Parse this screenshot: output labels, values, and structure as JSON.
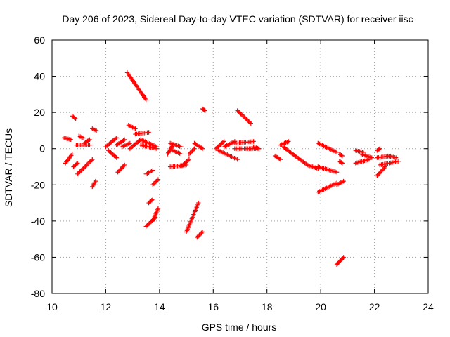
{
  "chart_data": {
    "type": "scatter",
    "title": "Day 206 of 2023, Sidereal Day-to-day VTEC variation (SDTVAR) for receiver iisc",
    "xlabel": "GPS time / hours",
    "ylabel": "SDTVAR / TECUs",
    "xlim": [
      10,
      24
    ],
    "ylim": [
      -80,
      60
    ],
    "xticks": [
      "10",
      "12",
      "14",
      "16",
      "18",
      "20",
      "22",
      "24"
    ],
    "yticks": [
      "-80",
      "-60",
      "-40",
      "-20",
      "0",
      "20",
      "40",
      "60"
    ],
    "grid": true,
    "marker": "+",
    "color": "#ff0000",
    "segments": [
      [
        [
          10.5,
          -8
        ],
        [
          10.75,
          -3
        ]
      ],
      [
        [
          10.45,
          6
        ],
        [
          10.7,
          5
        ]
      ],
      [
        [
          10.75,
          18
        ],
        [
          10.88,
          16.5
        ]
      ],
      [
        [
          10.8,
          -10
        ],
        [
          10.95,
          -8
        ]
      ],
      [
        [
          10.9,
          2
        ],
        [
          11.4,
          2
        ]
      ],
      [
        [
          11.0,
          7
        ],
        [
          11.15,
          6
        ]
      ],
      [
        [
          10.95,
          -14
        ],
        [
          11.5,
          -6
        ]
      ],
      [
        [
          11.2,
          3
        ],
        [
          11.4,
          5
        ]
      ],
      [
        [
          11.5,
          11
        ],
        [
          11.65,
          10
        ]
      ],
      [
        [
          11.5,
          -21
        ],
        [
          11.62,
          -18
        ]
      ],
      [
        [
          12.0,
          1
        ],
        [
          12.4,
          6
        ]
      ],
      [
        [
          12.1,
          -1
        ],
        [
          12.4,
          -5
        ]
      ],
      [
        [
          12.4,
          2
        ],
        [
          12.7,
          5
        ]
      ],
      [
        [
          12.45,
          -13
        ],
        [
          12.7,
          -9
        ]
      ],
      [
        [
          12.6,
          1
        ],
        [
          12.9,
          3
        ]
      ],
      [
        [
          12.8,
          42
        ],
        [
          13.5,
          27
        ]
      ],
      [
        [
          12.85,
          13
        ],
        [
          13.1,
          11
        ]
      ],
      [
        [
          12.9,
          0
        ],
        [
          13.3,
          5
        ]
      ],
      [
        [
          13.1,
          8
        ],
        [
          13.6,
          9
        ]
      ],
      [
        [
          13.3,
          2
        ],
        [
          13.9,
          0
        ]
      ],
      [
        [
          13.3,
          5
        ],
        [
          13.9,
          1
        ]
      ],
      [
        [
          13.5,
          -14
        ],
        [
          13.75,
          -12
        ]
      ],
      [
        [
          13.5,
          -43
        ],
        [
          13.85,
          -38
        ]
      ],
      [
        [
          13.6,
          -30
        ],
        [
          13.75,
          -28
        ]
      ],
      [
        [
          13.75,
          -40
        ],
        [
          13.95,
          -33
        ]
      ],
      [
        [
          13.75,
          -20
        ],
        [
          13.95,
          -17
        ]
      ],
      [
        [
          14.3,
          -3
        ],
        [
          14.5,
          2
        ]
      ],
      [
        [
          14.4,
          3
        ],
        [
          14.8,
          1
        ]
      ],
      [
        [
          14.4,
          -10
        ],
        [
          15.0,
          -9
        ]
      ],
      [
        [
          14.5,
          -1
        ],
        [
          14.8,
          -3
        ]
      ],
      [
        [
          14.8,
          -10
        ],
        [
          15.1,
          -6
        ]
      ],
      [
        [
          15.0,
          -46
        ],
        [
          15.45,
          -30
        ]
      ],
      [
        [
          15.1,
          -3
        ],
        [
          15.3,
          0
        ]
      ],
      [
        [
          15.3,
          3
        ],
        [
          15.6,
          0
        ]
      ],
      [
        [
          15.4,
          -49
        ],
        [
          15.6,
          -46
        ]
      ],
      [
        [
          15.6,
          22
        ],
        [
          15.7,
          21
        ]
      ],
      [
        [
          16.1,
          0
        ],
        [
          16.4,
          4
        ]
      ],
      [
        [
          16.2,
          -1
        ],
        [
          16.9,
          -6
        ]
      ],
      [
        [
          16.4,
          1
        ],
        [
          16.8,
          4
        ]
      ],
      [
        [
          16.8,
          3
        ],
        [
          17.5,
          4
        ]
      ],
      [
        [
          16.8,
          0
        ],
        [
          17.7,
          0
        ]
      ],
      [
        [
          16.9,
          21
        ],
        [
          17.4,
          14
        ]
      ],
      [
        [
          17.5,
          1
        ],
        [
          17.7,
          0
        ]
      ],
      [
        [
          18.3,
          -4
        ],
        [
          18.5,
          -6
        ]
      ],
      [
        [
          18.5,
          2
        ],
        [
          18.8,
          4
        ]
      ],
      [
        [
          18.6,
          1
        ],
        [
          19.5,
          -9
        ]
      ],
      [
        [
          19.5,
          -9
        ],
        [
          19.9,
          -11
        ]
      ],
      [
        [
          19.9,
          3
        ],
        [
          20.6,
          -2
        ]
      ],
      [
        [
          19.9,
          -10
        ],
        [
          20.6,
          -13
        ]
      ],
      [
        [
          19.9,
          -24
        ],
        [
          20.6,
          -19
        ]
      ],
      [
        [
          20.6,
          -64
        ],
        [
          20.85,
          -60
        ]
      ],
      [
        [
          20.6,
          -20
        ],
        [
          20.85,
          -18
        ]
      ],
      [
        [
          20.7,
          -3
        ],
        [
          20.8,
          -4
        ]
      ],
      [
        [
          20.7,
          -7
        ],
        [
          20.8,
          -8
        ]
      ],
      [
        [
          21.3,
          -1
        ],
        [
          21.6,
          -2
        ]
      ],
      [
        [
          21.3,
          -8
        ],
        [
          21.8,
          -6
        ]
      ],
      [
        [
          21.5,
          -3
        ],
        [
          21.9,
          -5
        ]
      ],
      [
        [
          22.1,
          -1
        ],
        [
          22.2,
          0
        ]
      ],
      [
        [
          22.1,
          -15
        ],
        [
          22.4,
          -10
        ]
      ],
      [
        [
          22.1,
          -5
        ],
        [
          22.6,
          -4
        ]
      ],
      [
        [
          22.2,
          -9
        ],
        [
          22.9,
          -7
        ]
      ],
      [
        [
          22.5,
          -4
        ],
        [
          22.8,
          -5
        ]
      ]
    ]
  }
}
